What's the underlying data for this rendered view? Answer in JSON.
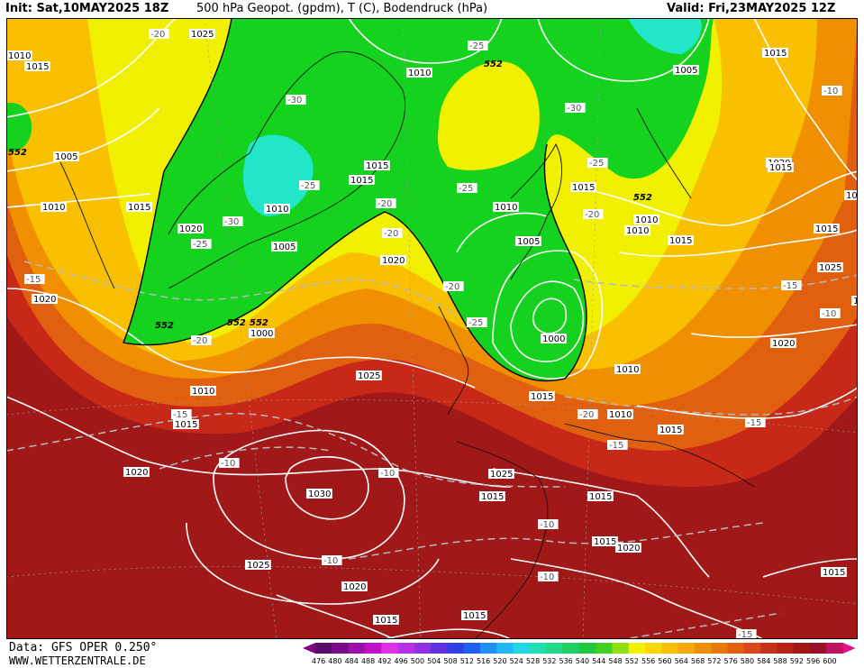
{
  "header": {
    "init": "Init: Sat,10MAY2025 18Z",
    "title": "500 hPa Geopot. (gpdm), T (C), Bodendruck (hPa)",
    "valid": "Valid: Fri,23MAY2025 12Z"
  },
  "footer": {
    "data_source": "Data: GFS OPER 0.250°",
    "website": "WWW.WETTERZENTRALE.DE"
  },
  "legend": {
    "levels": [
      "476",
      "480",
      "484",
      "488",
      "492",
      "496",
      "500",
      "504",
      "508",
      "512",
      "516",
      "520",
      "524",
      "528",
      "532",
      "536",
      "540",
      "544",
      "548",
      "552",
      "556",
      "560",
      "564",
      "568",
      "572",
      "576",
      "580",
      "584",
      "588",
      "592",
      "596",
      "600"
    ],
    "colors": [
      "#5a0a6a",
      "#7a0a8a",
      "#9a10aa",
      "#c010c8",
      "#e030e8",
      "#b830e8",
      "#9030e0",
      "#6030e0",
      "#3040e8",
      "#2060f0",
      "#2090f8",
      "#20b8f8",
      "#20d8e8",
      "#20e0b0",
      "#20d888",
      "#20d060",
      "#20c840",
      "#40d020",
      "#90e010",
      "#f0f000",
      "#f8d800",
      "#f8c000",
      "#f8a800",
      "#f09000",
      "#e87800",
      "#e06010",
      "#d84818",
      "#c83018",
      "#b82018",
      "#a01818",
      "#981028",
      "#c01060"
    ],
    "left_arrow_color": "#800080",
    "right_arrow_color": "#e0108a"
  },
  "map": {
    "field_colors": {
      "green": "#14d21e",
      "cyan": "#22e6c8",
      "yellow": "#f0f000",
      "gold": "#f8c000",
      "orange": "#f09000",
      "dark_orange": "#e06010",
      "red": "#c82818",
      "dark_red": "#a01818"
    },
    "labels": {
      "pressure": [
        {
          "text": "1025"
        },
        {
          "text": "1005"
        },
        {
          "text": "1010"
        },
        {
          "text": "1015"
        },
        {
          "text": "1020"
        },
        {
          "text": "1015"
        },
        {
          "text": "1010"
        },
        {
          "text": "1005"
        },
        {
          "text": "1015"
        },
        {
          "text": "1010"
        },
        {
          "text": "1010"
        },
        {
          "text": "1020"
        },
        {
          "text": "1005"
        },
        {
          "text": "1000"
        },
        {
          "text": "1000"
        },
        {
          "text": "1010"
        },
        {
          "text": "1015"
        },
        {
          "text": "1025"
        },
        {
          "text": "1030"
        },
        {
          "text": "1020"
        },
        {
          "text": "1025"
        },
        {
          "text": "1020"
        },
        {
          "text": "1015"
        },
        {
          "text": "1015"
        },
        {
          "text": "1015"
        },
        {
          "text": "1015"
        },
        {
          "text": "1015"
        },
        {
          "text": "1020"
        },
        {
          "text": "1025"
        },
        {
          "text": "1025"
        },
        {
          "text": "1020"
        },
        {
          "text": "1015"
        },
        {
          "text": "1005"
        },
        {
          "text": "1015"
        },
        {
          "text": "1010"
        },
        {
          "text": "1015"
        },
        {
          "text": "1010"
        },
        {
          "text": "1010"
        },
        {
          "text": "1015"
        },
        {
          "text": "1010"
        },
        {
          "text": "1020"
        },
        {
          "text": "1015"
        },
        {
          "text": "1015"
        },
        {
          "text": "1015"
        },
        {
          "text": "1015"
        },
        {
          "text": "1010"
        },
        {
          "text": "1015"
        },
        {
          "text": "1020"
        },
        {
          "text": "1015"
        },
        {
          "text": "1010"
        }
      ],
      "temperature": [
        {
          "text": "-25"
        },
        {
          "text": "-30"
        },
        {
          "text": "-25"
        },
        {
          "text": "-30"
        },
        {
          "text": "-25"
        },
        {
          "text": "-30"
        },
        {
          "text": "-20"
        },
        {
          "text": "-25"
        },
        {
          "text": "-20"
        },
        {
          "text": "-20"
        },
        {
          "text": "-15"
        },
        {
          "text": "-15"
        },
        {
          "text": "-20"
        },
        {
          "text": "-10"
        },
        {
          "text": "-10"
        },
        {
          "text": "-10"
        },
        {
          "text": "-10"
        },
        {
          "text": "-10"
        },
        {
          "text": "-10"
        },
        {
          "text": "-15"
        },
        {
          "text": "-20"
        },
        {
          "text": "-15"
        },
        {
          "text": "-15"
        },
        {
          "text": "-10"
        },
        {
          "text": "-15"
        },
        {
          "text": "-10"
        },
        {
          "text": "-25"
        },
        {
          "text": "-20"
        },
        {
          "text": "-20"
        },
        {
          "text": "-25"
        }
      ],
      "geopotential": [
        {
          "text": "552"
        },
        {
          "text": "552"
        },
        {
          "text": "552"
        },
        {
          "text": "552"
        },
        {
          "text": "552"
        },
        {
          "text": "552"
        }
      ]
    }
  }
}
